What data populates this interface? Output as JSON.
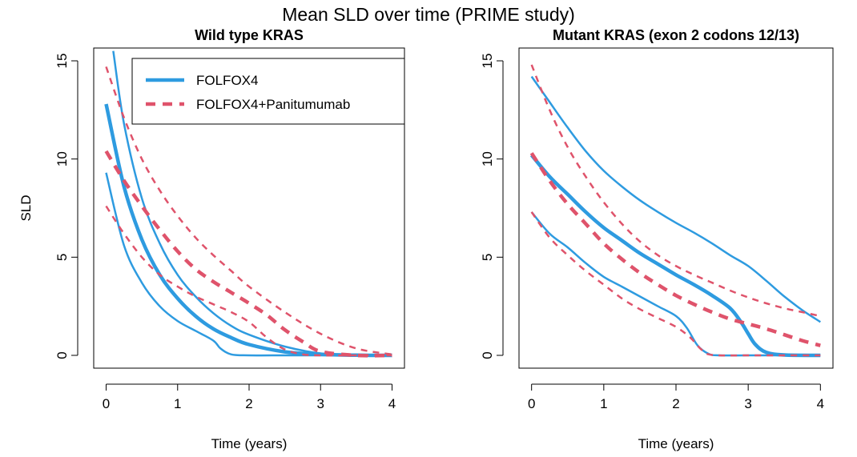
{
  "figure_title": "Mean SLD over time (PRIME study)",
  "colors": {
    "folfox4": "#2E9BE0",
    "panitumumab": "#DF536B",
    "axis": "#000000"
  },
  "legend": {
    "placement": "top-right",
    "entries": [
      {
        "label": "FOLFOX4",
        "style": "solid",
        "color": "#2E9BE0"
      },
      {
        "label": "FOLFOX4+Panitumumab",
        "style": "dashed",
        "color": "#DF536B"
      }
    ]
  },
  "chart_data": [
    {
      "type": "line",
      "title": "Wild type KRAS",
      "xlabel": "Time (years)",
      "ylabel": "SLD",
      "xlim": [
        0,
        4
      ],
      "ylim": [
        0,
        15
      ],
      "xticks": [
        "0",
        "1",
        "2",
        "3",
        "4"
      ],
      "yticks": [
        "0",
        "5",
        "10",
        "15"
      ],
      "grid": false,
      "series": [
        {
          "group": "FOLFOX4",
          "role": "mean",
          "x": [
            0,
            0.25,
            0.5,
            0.75,
            1,
            1.25,
            1.5,
            1.75,
            2,
            2.5,
            3,
            3.5,
            4
          ],
          "y": [
            12.8,
            8.6,
            5.9,
            4.1,
            2.9,
            2.0,
            1.35,
            0.9,
            0.55,
            0.18,
            0.05,
            0.01,
            0
          ]
        },
        {
          "group": "FOLFOX4",
          "role": "upper",
          "x": [
            0.1,
            0.25,
            0.5,
            0.75,
            1,
            1.25,
            1.5,
            1.75,
            2,
            2.5,
            3,
            3.5,
            4
          ],
          "y": [
            15.5,
            11.8,
            8.0,
            5.7,
            4.1,
            3.0,
            2.15,
            1.5,
            1.05,
            0.45,
            0.1,
            0.02,
            0
          ]
        },
        {
          "group": "FOLFOX4",
          "role": "lower",
          "x": [
            0,
            0.25,
            0.5,
            0.75,
            1,
            1.25,
            1.5,
            1.6,
            1.75,
            2,
            2.5,
            3,
            3.5,
            4
          ],
          "y": [
            9.3,
            5.6,
            3.7,
            2.5,
            1.75,
            1.25,
            0.75,
            0.35,
            0.05,
            0,
            0,
            0,
            0,
            0
          ]
        },
        {
          "group": "FOLFOX4+Panitumumab",
          "role": "mean",
          "x": [
            0,
            0.25,
            0.5,
            0.75,
            1,
            1.25,
            1.5,
            1.75,
            2,
            2.25,
            2.5,
            2.75,
            3,
            3.5,
            4
          ],
          "y": [
            10.4,
            8.9,
            7.6,
            6.4,
            5.3,
            4.4,
            3.75,
            3.2,
            2.65,
            2.05,
            1.3,
            0.7,
            0.2,
            0,
            0
          ]
        },
        {
          "group": "FOLFOX4+Panitumumab",
          "role": "upper",
          "x": [
            0,
            0.25,
            0.5,
            0.75,
            1,
            1.25,
            1.5,
            1.75,
            2,
            2.5,
            3,
            3.5,
            4
          ],
          "y": [
            14.7,
            12.1,
            10.0,
            8.4,
            7.1,
            6.0,
            5.1,
            4.3,
            3.5,
            2.2,
            1.1,
            0.35,
            0.05
          ]
        },
        {
          "group": "FOLFOX4+Panitumumab",
          "role": "lower",
          "x": [
            0,
            0.25,
            0.5,
            0.75,
            1,
            1.25,
            1.5,
            1.75,
            2,
            2.25,
            2.5,
            2.75,
            3,
            3.5,
            4
          ],
          "y": [
            7.6,
            6.2,
            5.0,
            4.1,
            3.5,
            3.0,
            2.6,
            2.2,
            1.7,
            0.9,
            0.3,
            0.05,
            0,
            0,
            0
          ]
        }
      ]
    },
    {
      "type": "line",
      "title": "Mutant KRAS (exon 2 codons 12/13)",
      "xlabel": "Time (years)",
      "ylabel": "",
      "xlim": [
        0,
        4
      ],
      "ylim": [
        0,
        15
      ],
      "xticks": [
        "0",
        "1",
        "2",
        "3",
        "4"
      ],
      "yticks": [
        "0",
        "5",
        "10",
        "15"
      ],
      "grid": false,
      "series": [
        {
          "group": "FOLFOX4",
          "role": "mean",
          "x": [
            0,
            0.25,
            0.5,
            0.75,
            1,
            1.25,
            1.5,
            1.75,
            2,
            2.25,
            2.5,
            2.75,
            2.9,
            3.0,
            3.1,
            3.25,
            3.5,
            4
          ],
          "y": [
            10.2,
            9.1,
            8.2,
            7.3,
            6.5,
            5.85,
            5.2,
            4.65,
            4.1,
            3.6,
            3.05,
            2.4,
            1.7,
            1.1,
            0.55,
            0.15,
            0.02,
            0
          ]
        },
        {
          "group": "FOLFOX4",
          "role": "upper",
          "x": [
            0,
            0.25,
            0.5,
            0.75,
            1,
            1.25,
            1.5,
            1.75,
            2,
            2.25,
            2.5,
            2.75,
            3,
            3.25,
            3.5,
            3.75,
            4
          ],
          "y": [
            14.2,
            12.9,
            11.6,
            10.4,
            9.4,
            8.6,
            7.9,
            7.3,
            6.75,
            6.25,
            5.7,
            5.1,
            4.55,
            3.8,
            3.0,
            2.3,
            1.7
          ]
        },
        {
          "group": "FOLFOX4",
          "role": "lower",
          "x": [
            0,
            0.25,
            0.5,
            0.75,
            1,
            1.25,
            1.5,
            1.75,
            2,
            2.15,
            2.3,
            2.45,
            2.6,
            3,
            3.5,
            4
          ],
          "y": [
            7.3,
            6.2,
            5.5,
            4.7,
            4.0,
            3.5,
            3.0,
            2.5,
            2.0,
            1.4,
            0.5,
            0.08,
            0,
            0,
            0,
            0
          ]
        },
        {
          "group": "FOLFOX4+Panitumumab",
          "role": "mean",
          "x": [
            0,
            0.25,
            0.5,
            0.75,
            1,
            1.25,
            1.5,
            1.75,
            2,
            2.25,
            2.5,
            2.75,
            3,
            3.25,
            3.5,
            3.75,
            4
          ],
          "y": [
            10.3,
            8.9,
            7.7,
            6.7,
            5.7,
            4.9,
            4.2,
            3.6,
            3.05,
            2.6,
            2.2,
            1.85,
            1.6,
            1.35,
            1.05,
            0.75,
            0.5
          ]
        },
        {
          "group": "FOLFOX4+Panitumumab",
          "role": "upper",
          "x": [
            0,
            0.25,
            0.5,
            0.75,
            1,
            1.25,
            1.5,
            1.75,
            2,
            2.25,
            2.5,
            2.75,
            3,
            3.25,
            3.5,
            3.75,
            4
          ],
          "y": [
            14.8,
            12.5,
            10.6,
            9.1,
            7.8,
            6.7,
            5.8,
            5.1,
            4.55,
            4.1,
            3.7,
            3.3,
            2.95,
            2.65,
            2.4,
            2.2,
            2.0
          ]
        },
        {
          "group": "FOLFOX4+Panitumumab",
          "role": "lower",
          "x": [
            0,
            0.25,
            0.5,
            0.75,
            1,
            1.25,
            1.5,
            1.75,
            2,
            2.2,
            2.35,
            2.5,
            3,
            3.5,
            4
          ],
          "y": [
            7.3,
            6.0,
            5.1,
            4.3,
            3.6,
            2.9,
            2.35,
            1.9,
            1.45,
            0.9,
            0.3,
            0.02,
            0,
            0,
            0
          ]
        }
      ]
    }
  ]
}
